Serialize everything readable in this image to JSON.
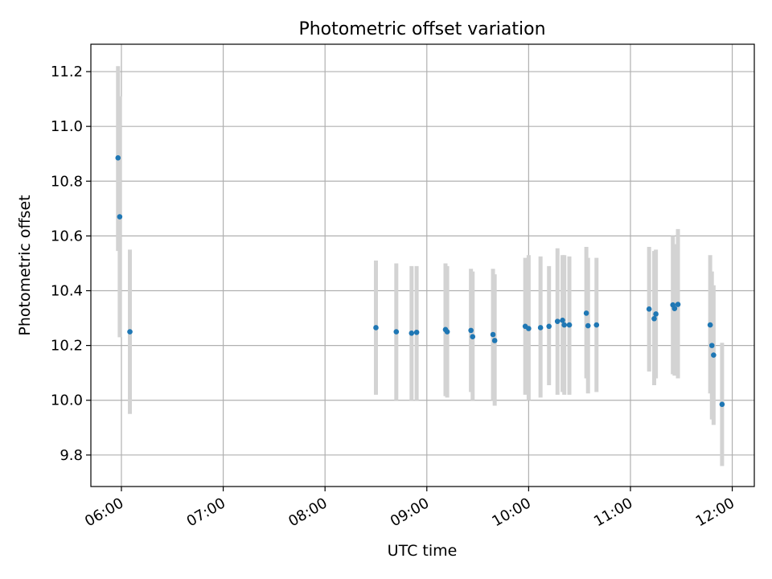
{
  "chart_data": {
    "type": "scatter",
    "title": "Photometric offset variation",
    "xlabel": "UTC time",
    "ylabel": "Photometric offset",
    "x_ticks": [
      "06:00",
      "07:00",
      "08:00",
      "09:00",
      "10:00",
      "11:00",
      "12:00"
    ],
    "y_ticks": [
      "9.8",
      "10.0",
      "10.2",
      "10.4",
      "10.6",
      "10.8",
      "11.0",
      "11.2"
    ],
    "xlim": [
      "05:42",
      "12:13"
    ],
    "ylim": [
      9.685,
      11.3
    ],
    "grid": true,
    "colors": {
      "marker": "#1f77b4",
      "errorbar": "#d3d3d3",
      "grid": "#b0b0b0"
    },
    "series": [
      {
        "points": [
          {
            "t": "05:58",
            "y": 10.885,
            "lo": 10.545,
            "hi": 11.22
          },
          {
            "t": "05:59",
            "y": 10.67,
            "lo": 10.23,
            "hi": 11.11
          },
          {
            "t": "06:05",
            "y": 10.25,
            "lo": 9.95,
            "hi": 10.55
          },
          {
            "t": "08:30",
            "y": 10.265,
            "lo": 10.02,
            "hi": 10.51
          },
          {
            "t": "08:42",
            "y": 10.25,
            "lo": 10.0,
            "hi": 10.5
          },
          {
            "t": "08:51",
            "y": 10.245,
            "lo": 10.0,
            "hi": 10.49
          },
          {
            "t": "08:54",
            "y": 10.248,
            "lo": 10.0,
            "hi": 10.49
          },
          {
            "t": "09:11",
            "y": 10.258,
            "lo": 10.015,
            "hi": 10.5
          },
          {
            "t": "09:12",
            "y": 10.25,
            "lo": 10.01,
            "hi": 10.49
          },
          {
            "t": "09:26",
            "y": 10.255,
            "lo": 10.03,
            "hi": 10.48
          },
          {
            "t": "09:27",
            "y": 10.232,
            "lo": 10.0,
            "hi": 10.47
          },
          {
            "t": "09:39",
            "y": 10.24,
            "lo": 10.0,
            "hi": 10.48
          },
          {
            "t": "09:40",
            "y": 10.218,
            "lo": 9.98,
            "hi": 10.46
          },
          {
            "t": "09:58",
            "y": 10.27,
            "lo": 10.02,
            "hi": 10.52
          },
          {
            "t": "10:00",
            "y": 10.262,
            "lo": 10.0,
            "hi": 10.53
          },
          {
            "t": "10:07",
            "y": 10.265,
            "lo": 10.01,
            "hi": 10.525
          },
          {
            "t": "10:12",
            "y": 10.27,
            "lo": 10.055,
            "hi": 10.49
          },
          {
            "t": "10:17",
            "y": 10.288,
            "lo": 10.02,
            "hi": 10.555
          },
          {
            "t": "10:20",
            "y": 10.292,
            "lo": 10.03,
            "hi": 10.53
          },
          {
            "t": "10:21",
            "y": 10.275,
            "lo": 10.02,
            "hi": 10.53
          },
          {
            "t": "10:24",
            "y": 10.275,
            "lo": 10.02,
            "hi": 10.525
          },
          {
            "t": "10:34",
            "y": 10.318,
            "lo": 10.08,
            "hi": 10.56
          },
          {
            "t": "10:35",
            "y": 10.272,
            "lo": 10.025,
            "hi": 10.52
          },
          {
            "t": "10:40",
            "y": 10.275,
            "lo": 10.03,
            "hi": 10.52
          },
          {
            "t": "11:11",
            "y": 10.333,
            "lo": 10.105,
            "hi": 10.56
          },
          {
            "t": "11:14",
            "y": 10.298,
            "lo": 10.055,
            "hi": 10.545
          },
          {
            "t": "11:15",
            "y": 10.315,
            "lo": 10.08,
            "hi": 10.55
          },
          {
            "t": "11:25",
            "y": 10.348,
            "lo": 10.095,
            "hi": 10.6
          },
          {
            "t": "11:26",
            "y": 10.335,
            "lo": 10.09,
            "hi": 10.57
          },
          {
            "t": "11:28",
            "y": 10.35,
            "lo": 10.08,
            "hi": 10.625
          },
          {
            "t": "11:47",
            "y": 10.275,
            "lo": 10.025,
            "hi": 10.53
          },
          {
            "t": "11:48",
            "y": 10.2,
            "lo": 9.93,
            "hi": 10.47
          },
          {
            "t": "11:49",
            "y": 10.165,
            "lo": 9.91,
            "hi": 10.42
          },
          {
            "t": "11:54",
            "y": 9.985,
            "lo": 9.76,
            "hi": 10.21
          }
        ]
      }
    ]
  }
}
